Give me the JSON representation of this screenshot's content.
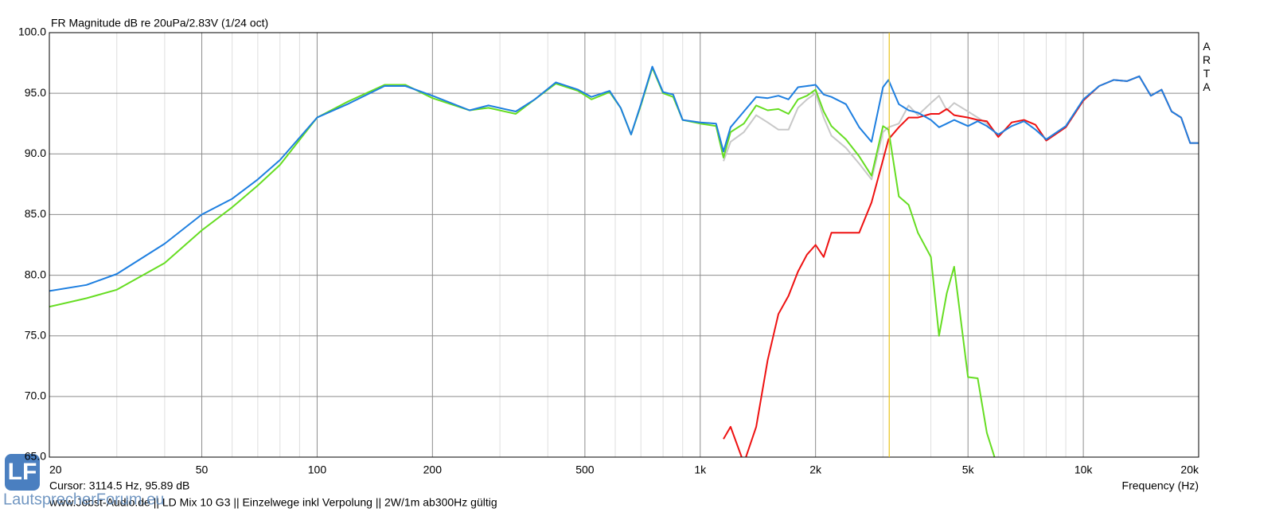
{
  "chart_data": {
    "type": "line",
    "title": "FR Magnitude dB re 20uPa/2.83V (1/24 oct)",
    "side_label": "ARTA",
    "x_label": "Frequency (Hz)",
    "cursor": {
      "label": "Cursor: 3114.5 Hz, 95.89 dB",
      "x": 3114.5,
      "color": "#e8c21c"
    },
    "footer": "www.Jobst-Audio.de  ||  LD Mix 10 G3  ||  Einzelwege inkl Verpolung  ||  2W/1m  ab300Hz gültig",
    "logo": {
      "mark": "LF",
      "text": "LautsprecherForum.eu"
    },
    "xscale": "log",
    "grid": true,
    "xlim": [
      20,
      20000
    ],
    "ylim": [
      65,
      100
    ],
    "xticks": [
      20,
      50,
      100,
      200,
      500,
      {
        "value": 1000,
        "label": "1k"
      },
      {
        "value": 2000,
        "label": "2k"
      },
      {
        "value": 5000,
        "label": "5k"
      },
      {
        "value": 10000,
        "label": "10k"
      },
      {
        "value": 20000,
        "label": "20k"
      }
    ],
    "xminorticks": [
      30,
      40,
      60,
      70,
      80,
      90,
      300,
      400,
      600,
      700,
      800,
      900,
      3000,
      4000,
      6000,
      7000,
      8000,
      9000
    ],
    "yticks": [
      {
        "value": 100,
        "label": "100.0"
      },
      {
        "value": 95,
        "label": "95.0"
      },
      {
        "value": 90,
        "label": "90.0"
      },
      {
        "value": 85,
        "label": "85.0"
      },
      {
        "value": 80,
        "label": "80.0"
      },
      {
        "value": 75,
        "label": "75.0"
      },
      {
        "value": 70,
        "label": "70.0"
      },
      {
        "value": 65,
        "label": "65.0"
      }
    ],
    "x": [
      20,
      25,
      30,
      40,
      50,
      60,
      70,
      80,
      100,
      120,
      150,
      170,
      200,
      250,
      280,
      330,
      370,
      420,
      480,
      520,
      580,
      620,
      660,
      700,
      750,
      800,
      850,
      900,
      1000,
      1100,
      1150,
      1200,
      1300,
      1400,
      1500,
      1600,
      1700,
      1800,
      1900,
      2000,
      2100,
      2200,
      2400,
      2600,
      2800,
      3000,
      3100,
      3300,
      3500,
      3700,
      4000,
      4200,
      4400,
      4600,
      5000,
      5300,
      5600,
      6000,
      6500,
      7000,
      7500,
      8000,
      9000,
      10000,
      11000,
      12000,
      13000,
      14000,
      15000,
      16000,
      17000,
      18000,
      19000,
      20000
    ],
    "series": [
      {
        "color": "#c8c8c8",
        "values": [
          null,
          null,
          null,
          null,
          null,
          null,
          null,
          null,
          null,
          null,
          null,
          null,
          null,
          null,
          null,
          null,
          null,
          null,
          null,
          null,
          null,
          null,
          null,
          null,
          null,
          null,
          null,
          null,
          null,
          null,
          89.4,
          91.0,
          91.8,
          93.2,
          92.6,
          92.0,
          92.0,
          93.8,
          94.5,
          95.0,
          93.0,
          91.5,
          90.5,
          89.2,
          87.9,
          91.8,
          92.2,
          92.5,
          94.0,
          93.2,
          94.2,
          94.8,
          93.6,
          94.2,
          93.5,
          93.0,
          92.5,
          91.5,
          null,
          null,
          null,
          null,
          null,
          null,
          null,
          null,
          null,
          null,
          null,
          null,
          null,
          null,
          null,
          null
        ]
      },
      {
        "color": "#ee1111",
        "values": [
          null,
          null,
          null,
          null,
          null,
          null,
          null,
          null,
          null,
          null,
          null,
          null,
          null,
          null,
          null,
          null,
          null,
          null,
          null,
          null,
          null,
          null,
          null,
          null,
          null,
          null,
          null,
          null,
          null,
          null,
          66.5,
          67.5,
          64.5,
          67.5,
          73.0,
          76.8,
          78.3,
          80.3,
          81.7,
          82.5,
          81.5,
          83.5,
          83.5,
          83.5,
          86.0,
          89.5,
          91.2,
          92.2,
          93.0,
          93.0,
          93.3,
          93.3,
          93.7,
          93.2,
          93.0,
          92.8,
          92.7,
          91.4,
          92.6,
          92.8,
          92.4,
          91.1,
          92.2,
          94.4,
          95.6,
          96.1,
          96.0,
          96.4,
          94.8,
          95.3,
          93.5,
          93.0,
          90.9,
          90.9
        ]
      },
      {
        "color": "#66dd22",
        "values": [
          77.4,
          78.1,
          78.8,
          81.0,
          83.7,
          85.6,
          87.4,
          89.1,
          93.0,
          94.3,
          95.7,
          95.7,
          94.6,
          93.6,
          93.8,
          93.3,
          94.5,
          95.8,
          95.2,
          94.5,
          95.1,
          93.8,
          91.6,
          94.0,
          97.1,
          95.0,
          94.7,
          92.8,
          92.5,
          92.3,
          89.7,
          91.8,
          92.5,
          94.0,
          93.6,
          93.7,
          93.3,
          94.5,
          94.8,
          95.3,
          93.5,
          92.3,
          91.2,
          89.8,
          88.2,
          92.3,
          92.0,
          86.5,
          85.8,
          83.5,
          81.5,
          75.0,
          78.5,
          80.7,
          71.6,
          71.5,
          67.0,
          64.0,
          null,
          null,
          null,
          null,
          null,
          null,
          null,
          null,
          null,
          null,
          null,
          null,
          null,
          null,
          null,
          null
        ]
      },
      {
        "color": "#1e7fe0",
        "values": [
          78.7,
          79.2,
          80.1,
          82.6,
          85.0,
          86.3,
          87.9,
          89.5,
          93.0,
          94.1,
          95.6,
          95.6,
          94.8,
          93.6,
          94.0,
          93.5,
          94.5,
          95.9,
          95.3,
          94.7,
          95.2,
          93.8,
          91.6,
          94.1,
          97.2,
          95.1,
          94.9,
          92.8,
          92.6,
          92.5,
          90.2,
          92.2,
          93.5,
          94.7,
          94.6,
          94.8,
          94.5,
          95.5,
          95.6,
          95.7,
          94.9,
          94.7,
          94.1,
          92.2,
          91.0,
          95.5,
          96.1,
          94.1,
          93.6,
          93.4,
          92.8,
          92.2,
          92.5,
          92.8,
          92.3,
          92.7,
          92.3,
          91.6,
          92.3,
          92.7,
          92.0,
          91.2,
          92.3,
          94.5,
          95.6,
          96.1,
          96.0,
          96.4,
          94.8,
          95.3,
          93.5,
          93.0,
          90.9,
          90.9
        ]
      }
    ]
  }
}
